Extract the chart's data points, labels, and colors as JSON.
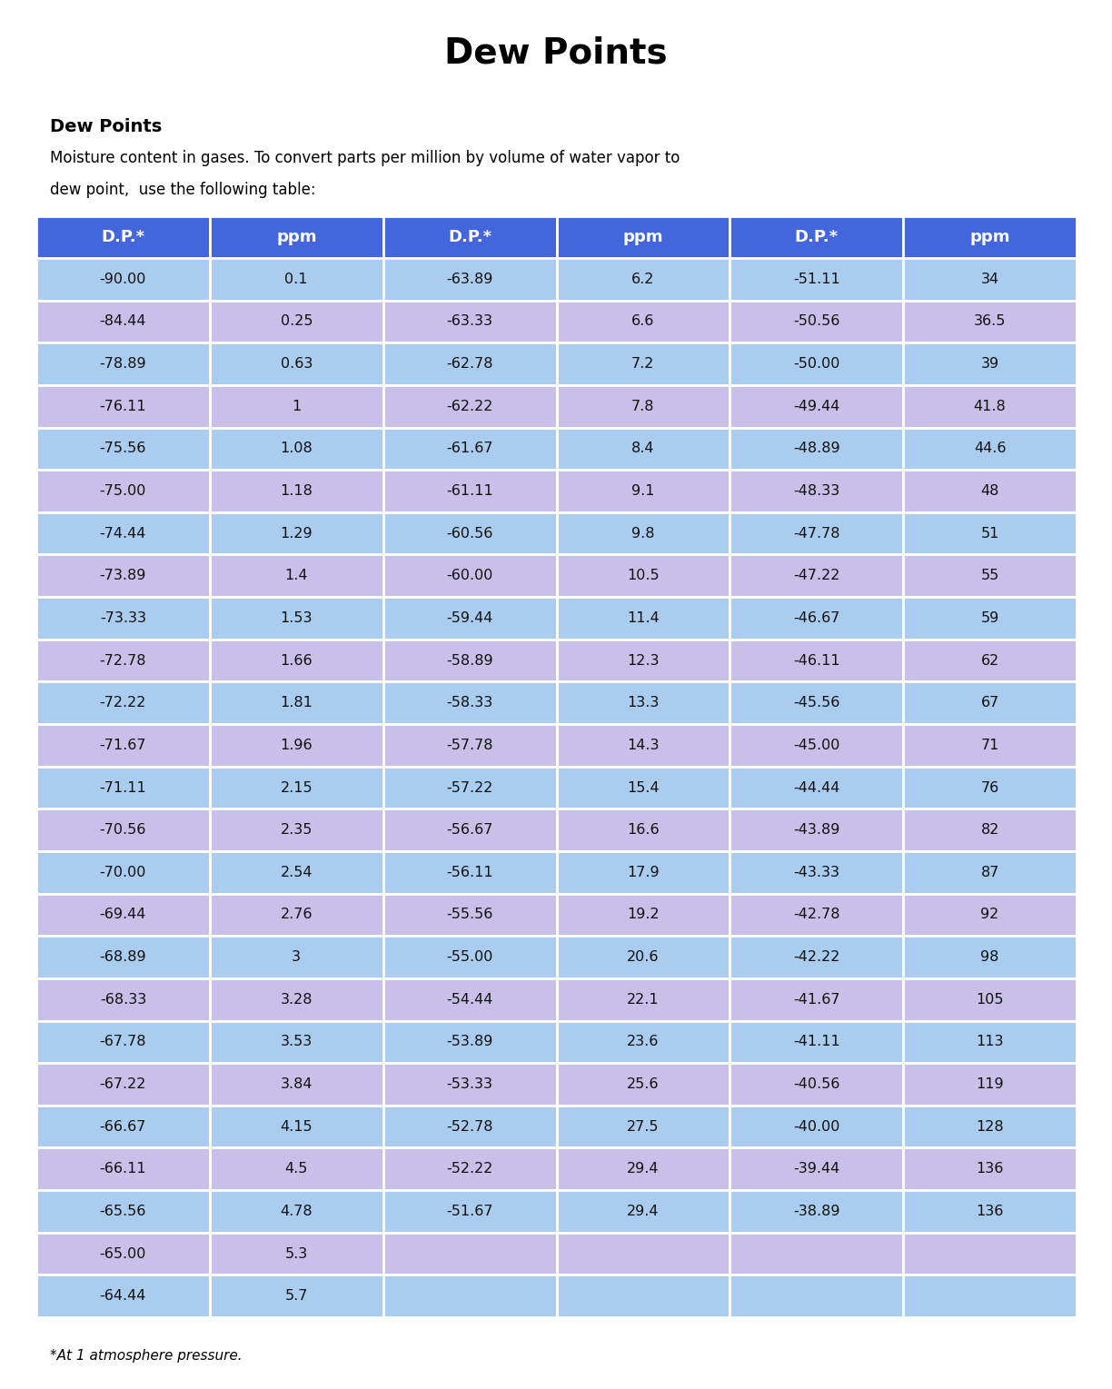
{
  "title": "Dew Points",
  "subtitle_bold": "Dew Points",
  "subtitle_line1": "Moisture content in gases. To convert parts per million by volume of water vapor to",
  "subtitle_line2": "dew point,  use the following table:",
  "footer": "*At 1 atmosphere pressure.",
  "header_color": "#4466DD",
  "header_text_color": "#FFFFFF",
  "row_color_odd": "#AACCEE",
  "row_color_even": "#C8C0E8",
  "col_headers": [
    "D.P.*",
    "ppm",
    "D.P.*",
    "ppm",
    "D.P.*",
    "ppm"
  ],
  "col1_dp": [
    "-90.00",
    "-84.44",
    "-78.89",
    "-76.11",
    "-75.56",
    "-75.00",
    "-74.44",
    "-73.89",
    "-73.33",
    "-72.78",
    "-72.22",
    "-71.67",
    "-71.11",
    "-70.56",
    "-70.00",
    "-69.44",
    "-68.89",
    "-68.33",
    "-67.78",
    "-67.22",
    "-66.67",
    "-66.11",
    "-65.56",
    "-65.00",
    "-64.44"
  ],
  "col1_ppm": [
    "0.1",
    "0.25",
    "0.63",
    "1",
    "1.08",
    "1.18",
    "1.29",
    "1.4",
    "1.53",
    "1.66",
    "1.81",
    "1.96",
    "2.15",
    "2.35",
    "2.54",
    "2.76",
    "3",
    "3.28",
    "3.53",
    "3.84",
    "4.15",
    "4.5",
    "4.78",
    "5.3",
    "5.7"
  ],
  "col2_dp": [
    "-63.89",
    "-63.33",
    "-62.78",
    "-62.22",
    "-61.67",
    "-61.11",
    "-60.56",
    "-60.00",
    "-59.44",
    "-58.89",
    "-58.33",
    "-57.78",
    "-57.22",
    "-56.67",
    "-56.11",
    "-55.56",
    "-55.00",
    "-54.44",
    "-53.89",
    "-53.33",
    "-52.78",
    "-52.22",
    "-51.67",
    "",
    ""
  ],
  "col2_ppm": [
    "6.2",
    "6.6",
    "7.2",
    "7.8",
    "8.4",
    "9.1",
    "9.8",
    "10.5",
    "11.4",
    "12.3",
    "13.3",
    "14.3",
    "15.4",
    "16.6",
    "17.9",
    "19.2",
    "20.6",
    "22.1",
    "23.6",
    "25.6",
    "27.5",
    "29.4",
    "29.4",
    "",
    ""
  ],
  "col3_dp": [
    "-51.11",
    "-50.56",
    "-50.00",
    "-49.44",
    "-48.89",
    "-48.33",
    "-47.78",
    "-47.22",
    "-46.67",
    "-46.11",
    "-45.56",
    "-45.00",
    "-44.44",
    "-43.89",
    "-43.33",
    "-42.78",
    "-42.22",
    "-41.67",
    "-41.11",
    "-40.56",
    "-40.00",
    "-39.44",
    "-38.89",
    "",
    ""
  ],
  "col3_ppm": [
    "34",
    "36.5",
    "39",
    "41.8",
    "44.6",
    "48",
    "51",
    "55",
    "59",
    "62",
    "67",
    "71",
    "76",
    "82",
    "87",
    "92",
    "98",
    "105",
    "113",
    "119",
    "128",
    "136",
    "136",
    "",
    ""
  ]
}
